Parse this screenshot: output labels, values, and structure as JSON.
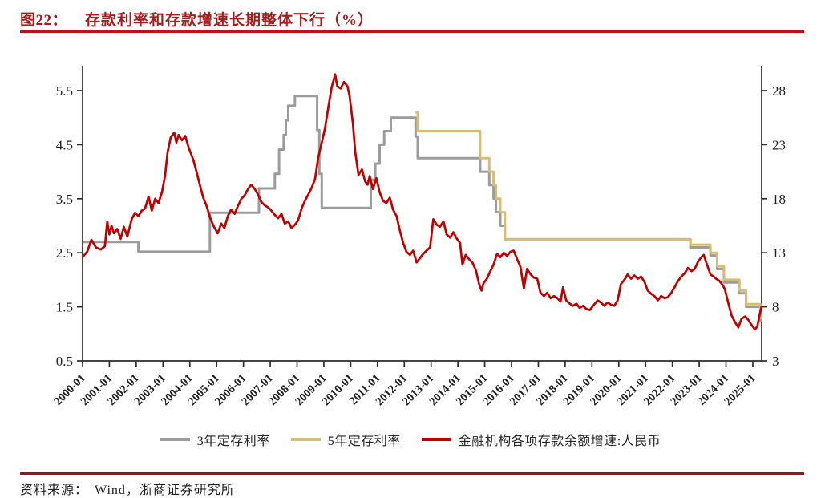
{
  "header": {
    "fig_label": "图22：",
    "title": "存款利率和存款增速长期整体下行（%）"
  },
  "source": {
    "label": "资料来源：",
    "text": "Wind，浙商证券研究所"
  },
  "colors": {
    "title_red": "#A31E1D",
    "rule_top": "#BD1216",
    "rule_bottom": "#9C1418",
    "axis": "#2b2b2b",
    "tick_text": "#1f1f1f",
    "series_gray": "#9C9C9C",
    "series_gold": "#D9BC72",
    "series_red": "#C00000"
  },
  "legend": {
    "items": [
      {
        "label": "3年定存利率",
        "color": "#9C9C9C"
      },
      {
        "label": "5年定存利率",
        "color": "#D9BC72"
      },
      {
        "label": "金融机构各项存款余额增速:人民币",
        "color": "#C00000"
      }
    ]
  },
  "chart_data": {
    "type": "line",
    "title": "存款利率和存款增速长期整体下行（%）",
    "grid": false,
    "legend_position": "bottom",
    "x_domain": [
      2000,
      2025.33
    ],
    "x_tick_labels": [
      "2000-01",
      "2001-01",
      "2002-01",
      "2003-01",
      "2004-01",
      "2005-01",
      "2006-01",
      "2007-01",
      "2008-01",
      "2009-01",
      "2010-01",
      "2011-01",
      "2012-01",
      "2013-01",
      "2014-01",
      "2015-01",
      "2016-01",
      "2017-01",
      "2018-01",
      "2019-01",
      "2020-01",
      "2021-01",
      "2022-01",
      "2023-01",
      "2024-01",
      "2025-01"
    ],
    "left_axis": {
      "ticks": [
        0.5,
        1.5,
        2.5,
        3.5,
        4.5,
        5.5
      ],
      "range": [
        0.5,
        5.96
      ],
      "unit": "%"
    },
    "right_axis": {
      "ticks": [
        3,
        8,
        13,
        18,
        23,
        28
      ],
      "range": [
        3,
        30.0
      ],
      "unit": "%"
    },
    "series": [
      {
        "name": "3年定存利率",
        "axis": "left",
        "style": "step",
        "color": "#9C9C9C",
        "width": 3,
        "points": [
          [
            2000.0,
            2.7
          ],
          [
            2002.08,
            2.52
          ],
          [
            2004.75,
            3.24
          ],
          [
            2006.58,
            3.69
          ],
          [
            2007.17,
            3.96
          ],
          [
            2007.33,
            4.41
          ],
          [
            2007.5,
            4.68
          ],
          [
            2007.58,
            4.95
          ],
          [
            2007.67,
            5.22
          ],
          [
            2007.92,
            5.4
          ],
          [
            2008.75,
            4.77
          ],
          [
            2008.83,
            3.96
          ],
          [
            2008.92,
            3.33
          ],
          [
            2010.75,
            3.85
          ],
          [
            2010.92,
            4.15
          ],
          [
            2011.08,
            4.5
          ],
          [
            2011.25,
            4.75
          ],
          [
            2011.5,
            5.0
          ],
          [
            2012.42,
            4.65
          ],
          [
            2012.5,
            4.25
          ],
          [
            2014.83,
            4.0
          ],
          [
            2015.17,
            3.75
          ],
          [
            2015.33,
            3.5
          ],
          [
            2015.42,
            3.25
          ],
          [
            2015.58,
            3.0
          ],
          [
            2015.75,
            2.75
          ],
          [
            2022.67,
            2.6
          ],
          [
            2023.42,
            2.45
          ],
          [
            2023.67,
            2.2
          ],
          [
            2023.92,
            1.95
          ],
          [
            2024.5,
            1.75
          ],
          [
            2024.75,
            1.5
          ],
          [
            2025.28,
            1.25
          ]
        ]
      },
      {
        "name": "5年定存利率",
        "axis": "left",
        "style": "step",
        "color": "#D9BC72",
        "width": 3,
        "points": [
          [
            2012.42,
            5.1
          ],
          [
            2012.5,
            4.75
          ],
          [
            2014.83,
            4.25
          ],
          [
            2015.17,
            4.0
          ],
          [
            2015.33,
            3.75
          ],
          [
            2015.42,
            3.5
          ],
          [
            2015.58,
            3.25
          ],
          [
            2015.75,
            2.75
          ],
          [
            2022.67,
            2.65
          ],
          [
            2023.42,
            2.5
          ],
          [
            2023.67,
            2.25
          ],
          [
            2023.92,
            2.0
          ],
          [
            2024.5,
            1.8
          ],
          [
            2024.75,
            1.55
          ],
          [
            2025.28,
            1.3
          ]
        ]
      },
      {
        "name": "金融机构各项存款余额增速:人民币",
        "axis": "right",
        "style": "line",
        "color": "#C00000",
        "width": 2.7,
        "points": [
          [
            2000.0,
            12.6
          ],
          [
            2000.17,
            13.1
          ],
          [
            2000.33,
            14.2
          ],
          [
            2000.5,
            13.5
          ],
          [
            2000.67,
            13.3
          ],
          [
            2000.83,
            13.6
          ],
          [
            2000.92,
            15.9
          ],
          [
            2001.0,
            14.7
          ],
          [
            2001.08,
            15.5
          ],
          [
            2001.17,
            14.8
          ],
          [
            2001.29,
            15.2
          ],
          [
            2001.42,
            14.3
          ],
          [
            2001.54,
            15.4
          ],
          [
            2001.67,
            14.5
          ],
          [
            2001.83,
            16.1
          ],
          [
            2001.96,
            16.7
          ],
          [
            2002.08,
            16.4
          ],
          [
            2002.21,
            16.9
          ],
          [
            2002.33,
            17.1
          ],
          [
            2002.46,
            18.2
          ],
          [
            2002.58,
            16.9
          ],
          [
            2002.71,
            18.0
          ],
          [
            2002.83,
            17.6
          ],
          [
            2002.96,
            18.6
          ],
          [
            2003.08,
            20.2
          ],
          [
            2003.17,
            22.3
          ],
          [
            2003.29,
            23.7
          ],
          [
            2003.42,
            24.1
          ],
          [
            2003.5,
            23.2
          ],
          [
            2003.58,
            23.9
          ],
          [
            2003.71,
            23.4
          ],
          [
            2003.83,
            23.8
          ],
          [
            2003.96,
            22.7
          ],
          [
            2004.13,
            21.6
          ],
          [
            2004.25,
            20.5
          ],
          [
            2004.38,
            19.2
          ],
          [
            2004.5,
            18.1
          ],
          [
            2004.63,
            17.3
          ],
          [
            2004.75,
            16.3
          ],
          [
            2004.88,
            15.5
          ],
          [
            2005.04,
            14.8
          ],
          [
            2005.17,
            15.7
          ],
          [
            2005.29,
            15.3
          ],
          [
            2005.42,
            16.4
          ],
          [
            2005.54,
            17.0
          ],
          [
            2005.67,
            16.6
          ],
          [
            2005.79,
            17.3
          ],
          [
            2005.92,
            18.0
          ],
          [
            2006.04,
            18.3
          ],
          [
            2006.17,
            18.9
          ],
          [
            2006.29,
            19.3
          ],
          [
            2006.42,
            18.9
          ],
          [
            2006.54,
            18.4
          ],
          [
            2006.67,
            17.7
          ],
          [
            2006.79,
            17.4
          ],
          [
            2006.92,
            17.2
          ],
          [
            2007.04,
            16.9
          ],
          [
            2007.17,
            16.5
          ],
          [
            2007.29,
            16.2
          ],
          [
            2007.42,
            16.6
          ],
          [
            2007.54,
            15.7
          ],
          [
            2007.67,
            15.9
          ],
          [
            2007.79,
            15.3
          ],
          [
            2007.92,
            15.6
          ],
          [
            2008.04,
            16.0
          ],
          [
            2008.17,
            17.1
          ],
          [
            2008.29,
            17.8
          ],
          [
            2008.42,
            18.4
          ],
          [
            2008.54,
            19.0
          ],
          [
            2008.67,
            19.8
          ],
          [
            2008.79,
            21.8
          ],
          [
            2008.92,
            23.2
          ],
          [
            2009.04,
            24.5
          ],
          [
            2009.17,
            26.5
          ],
          [
            2009.29,
            28.3
          ],
          [
            2009.42,
            29.5
          ],
          [
            2009.5,
            28.4
          ],
          [
            2009.63,
            28.2
          ],
          [
            2009.75,
            28.8
          ],
          [
            2009.88,
            28.4
          ],
          [
            2009.96,
            27.5
          ],
          [
            2010.08,
            25.0
          ],
          [
            2010.17,
            22.3
          ],
          [
            2010.29,
            20.2
          ],
          [
            2010.42,
            20.7
          ],
          [
            2010.54,
            19.6
          ],
          [
            2010.63,
            19.3
          ],
          [
            2010.71,
            20.1
          ],
          [
            2010.83,
            18.9
          ],
          [
            2010.96,
            19.9
          ],
          [
            2011.08,
            18.6
          ],
          [
            2011.21,
            17.8
          ],
          [
            2011.33,
            17.6
          ],
          [
            2011.46,
            18.1
          ],
          [
            2011.58,
            17.0
          ],
          [
            2011.71,
            16.4
          ],
          [
            2011.83,
            15.1
          ],
          [
            2011.96,
            13.9
          ],
          [
            2012.08,
            13.1
          ],
          [
            2012.21,
            12.8
          ],
          [
            2012.33,
            13.2
          ],
          [
            2012.46,
            12.1
          ],
          [
            2012.58,
            12.5
          ],
          [
            2012.71,
            12.9
          ],
          [
            2012.83,
            13.2
          ],
          [
            2012.96,
            13.5
          ],
          [
            2013.08,
            16.1
          ],
          [
            2013.21,
            15.6
          ],
          [
            2013.33,
            15.4
          ],
          [
            2013.46,
            15.9
          ],
          [
            2013.58,
            14.7
          ],
          [
            2013.71,
            14.4
          ],
          [
            2013.83,
            14.9
          ],
          [
            2013.96,
            14.3
          ],
          [
            2014.08,
            13.9
          ],
          [
            2014.17,
            11.9
          ],
          [
            2014.29,
            12.8
          ],
          [
            2014.42,
            12.4
          ],
          [
            2014.54,
            12.1
          ],
          [
            2014.67,
            11.4
          ],
          [
            2014.79,
            10.1
          ],
          [
            2014.88,
            9.5
          ],
          [
            2014.96,
            10.2
          ],
          [
            2015.08,
            10.6
          ],
          [
            2015.21,
            11.3
          ],
          [
            2015.33,
            11.9
          ],
          [
            2015.46,
            12.9
          ],
          [
            2015.58,
            12.6
          ],
          [
            2015.71,
            13.0
          ],
          [
            2015.83,
            12.7
          ],
          [
            2015.96,
            13.1
          ],
          [
            2016.08,
            13.2
          ],
          [
            2016.21,
            12.4
          ],
          [
            2016.33,
            11.7
          ],
          [
            2016.46,
            9.7
          ],
          [
            2016.58,
            11.5
          ],
          [
            2016.71,
            11.0
          ],
          [
            2016.83,
            10.7
          ],
          [
            2016.96,
            10.6
          ],
          [
            2017.08,
            9.3
          ],
          [
            2017.21,
            9.0
          ],
          [
            2017.33,
            9.3
          ],
          [
            2017.46,
            8.8
          ],
          [
            2017.58,
            9.0
          ],
          [
            2017.71,
            8.8
          ],
          [
            2017.83,
            8.5
          ],
          [
            2017.92,
            9.8
          ],
          [
            2018.04,
            8.6
          ],
          [
            2018.17,
            8.3
          ],
          [
            2018.29,
            8.1
          ],
          [
            2018.42,
            8.3
          ],
          [
            2018.54,
            7.9
          ],
          [
            2018.67,
            8.1
          ],
          [
            2018.79,
            7.8
          ],
          [
            2018.92,
            7.7
          ],
          [
            2019.04,
            8.1
          ],
          [
            2019.21,
            8.6
          ],
          [
            2019.33,
            8.4
          ],
          [
            2019.46,
            8.1
          ],
          [
            2019.58,
            8.4
          ],
          [
            2019.71,
            8.2
          ],
          [
            2019.83,
            8.1
          ],
          [
            2019.96,
            8.6
          ],
          [
            2020.08,
            10.1
          ],
          [
            2020.21,
            10.5
          ],
          [
            2020.33,
            11.0
          ],
          [
            2020.46,
            10.6
          ],
          [
            2020.58,
            10.9
          ],
          [
            2020.71,
            10.6
          ],
          [
            2020.83,
            10.8
          ],
          [
            2020.96,
            10.3
          ],
          [
            2021.08,
            9.5
          ],
          [
            2021.21,
            9.2
          ],
          [
            2021.33,
            9.0
          ],
          [
            2021.46,
            8.6
          ],
          [
            2021.58,
            9.0
          ],
          [
            2021.71,
            8.8
          ],
          [
            2021.83,
            8.9
          ],
          [
            2021.96,
            9.3
          ],
          [
            2022.08,
            9.8
          ],
          [
            2022.21,
            10.4
          ],
          [
            2022.33,
            10.8
          ],
          [
            2022.46,
            11.1
          ],
          [
            2022.58,
            11.6
          ],
          [
            2022.71,
            11.3
          ],
          [
            2022.83,
            11.5
          ],
          [
            2022.96,
            12.2
          ],
          [
            2023.08,
            12.6
          ],
          [
            2023.17,
            12.8
          ],
          [
            2023.29,
            11.9
          ],
          [
            2023.42,
            11.0
          ],
          [
            2023.54,
            10.8
          ],
          [
            2023.63,
            10.6
          ],
          [
            2023.75,
            10.4
          ],
          [
            2023.88,
            10.0
          ],
          [
            2023.96,
            9.6
          ],
          [
            2024.08,
            8.4
          ],
          [
            2024.21,
            7.2
          ],
          [
            2024.33,
            6.6
          ],
          [
            2024.46,
            6.1
          ],
          [
            2024.58,
            6.9
          ],
          [
            2024.71,
            7.1
          ],
          [
            2024.83,
            6.8
          ],
          [
            2024.96,
            6.3
          ],
          [
            2025.08,
            5.9
          ],
          [
            2025.17,
            6.2
          ],
          [
            2025.25,
            7.2
          ],
          [
            2025.33,
            8.1
          ]
        ]
      }
    ]
  }
}
